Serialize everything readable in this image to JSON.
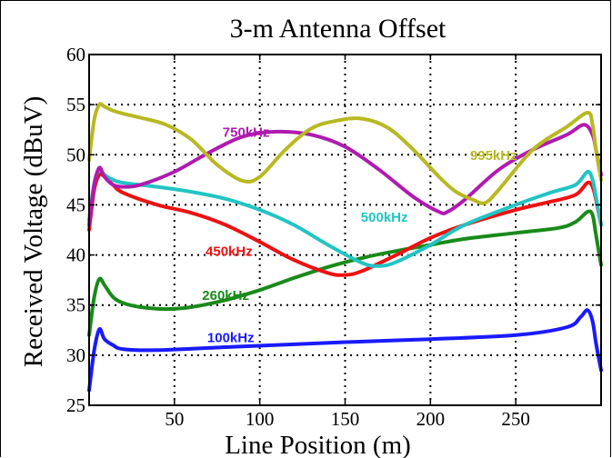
{
  "chart_data": {
    "type": "line",
    "title": "3-m Antenna Offset",
    "xlabel": "Line Position (m)",
    "ylabel": "Received Voltage (dBuV)",
    "xlim": [
      0,
      300
    ],
    "ylim": [
      25,
      60
    ],
    "xticks": [
      50,
      100,
      150,
      200,
      250
    ],
    "yticks": [
      25,
      30,
      35,
      40,
      45,
      50,
      55,
      60
    ],
    "grid": true,
    "legend": "inline labels",
    "series": [
      {
        "name": "100kHz",
        "color": "#1a1aff",
        "x": [
          0,
          3,
          6,
          9,
          14,
          20,
          40,
          80,
          150,
          200,
          250,
          280,
          288,
          292,
          295,
          297,
          300
        ],
        "y": [
          26.5,
          30.5,
          32.6,
          31.6,
          31.0,
          30.6,
          30.5,
          30.8,
          31.3,
          31.6,
          32.0,
          32.8,
          33.8,
          34.5,
          33.4,
          31.2,
          28.5
        ]
      },
      {
        "name": "260kHz",
        "color": "#1a8a1a",
        "x": [
          0,
          3,
          6,
          9,
          14,
          20,
          30,
          45,
          60,
          80,
          100,
          120,
          140,
          160,
          180,
          200,
          220,
          250,
          275,
          285,
          292,
          295,
          297,
          300
        ],
        "y": [
          32.0,
          35.8,
          37.6,
          37.0,
          35.8,
          35.2,
          34.8,
          34.6,
          34.8,
          35.5,
          36.5,
          37.7,
          38.8,
          39.7,
          40.4,
          41.0,
          41.6,
          42.2,
          42.7,
          43.3,
          44.3,
          44.0,
          42.0,
          39.0
        ]
      },
      {
        "name": "450kHz",
        "color": "#ee1111",
        "x": [
          0,
          3,
          6,
          9,
          14,
          20,
          40,
          60,
          80,
          100,
          120,
          140,
          150,
          160,
          180,
          200,
          220,
          250,
          270,
          285,
          292,
          295,
          297,
          300
        ],
        "y": [
          42.5,
          46.5,
          48.0,
          47.8,
          47.0,
          46.2,
          45.0,
          44.2,
          43.0,
          41.3,
          39.5,
          38.2,
          38.0,
          38.4,
          40.0,
          41.7,
          43.0,
          44.5,
          45.3,
          46.0,
          47.2,
          46.8,
          45.5,
          43.0
        ]
      },
      {
        "name": "500kHz",
        "color": "#22c4c4",
        "x": [
          0,
          3,
          6,
          9,
          14,
          20,
          40,
          60,
          80,
          100,
          120,
          140,
          160,
          170,
          180,
          200,
          220,
          250,
          270,
          285,
          292,
          295,
          297,
          300
        ],
        "y": [
          43.5,
          47.2,
          48.5,
          48.0,
          47.5,
          47.2,
          46.8,
          46.3,
          45.6,
          44.5,
          43.0,
          41.0,
          39.2,
          38.9,
          39.3,
          41.0,
          43.0,
          45.0,
          46.2,
          47.0,
          48.3,
          47.5,
          45.8,
          43.0
        ]
      },
      {
        "name": "750kHz",
        "color": "#b01ab0",
        "x": [
          0,
          3,
          6,
          9,
          14,
          20,
          30,
          50,
          70,
          90,
          110,
          130,
          150,
          170,
          190,
          205,
          210,
          220,
          240,
          260,
          280,
          290,
          295,
          297,
          300
        ],
        "y": [
          43.0,
          47.0,
          48.7,
          47.8,
          47.0,
          46.8,
          47.0,
          48.3,
          50.2,
          51.8,
          52.3,
          52.0,
          50.8,
          48.5,
          45.8,
          44.3,
          44.3,
          45.5,
          48.5,
          50.5,
          52.0,
          53.0,
          52.0,
          50.5,
          48.0
        ]
      },
      {
        "name": "995kHz",
        "color": "#b8b822",
        "x": [
          0,
          3,
          6,
          9,
          14,
          20,
          30,
          45,
          60,
          75,
          90,
          100,
          115,
          130,
          145,
          160,
          175,
          190,
          205,
          215,
          225,
          232,
          240,
          260,
          280,
          292,
          295,
          297,
          300
        ],
        "y": [
          49.5,
          53.5,
          55.0,
          54.8,
          54.4,
          54.1,
          53.7,
          53.0,
          51.5,
          49.0,
          47.4,
          47.8,
          50.5,
          52.6,
          53.4,
          53.6,
          52.7,
          50.5,
          47.8,
          46.3,
          45.5,
          45.2,
          46.5,
          50.5,
          52.8,
          54.2,
          53.0,
          50.5,
          47.5
        ]
      }
    ],
    "labels": [
      {
        "text": "750kHz",
        "x": 92,
        "y": 51.8,
        "color": "#b01ab0"
      },
      {
        "text": "995kHz",
        "x": 237,
        "y": 49.5,
        "color": "#b8b822"
      },
      {
        "text": "500kHz",
        "x": 173,
        "y": 43.3,
        "color": "#22c4c4"
      },
      {
        "text": "450kHz",
        "x": 82,
        "y": 39.9,
        "color": "#ee1111"
      },
      {
        "text": "260kHz",
        "x": 80,
        "y": 35.5,
        "color": "#1a8a1a"
      },
      {
        "text": "100kHz",
        "x": 83,
        "y": 31.3,
        "color": "#1a1aff"
      }
    ]
  }
}
